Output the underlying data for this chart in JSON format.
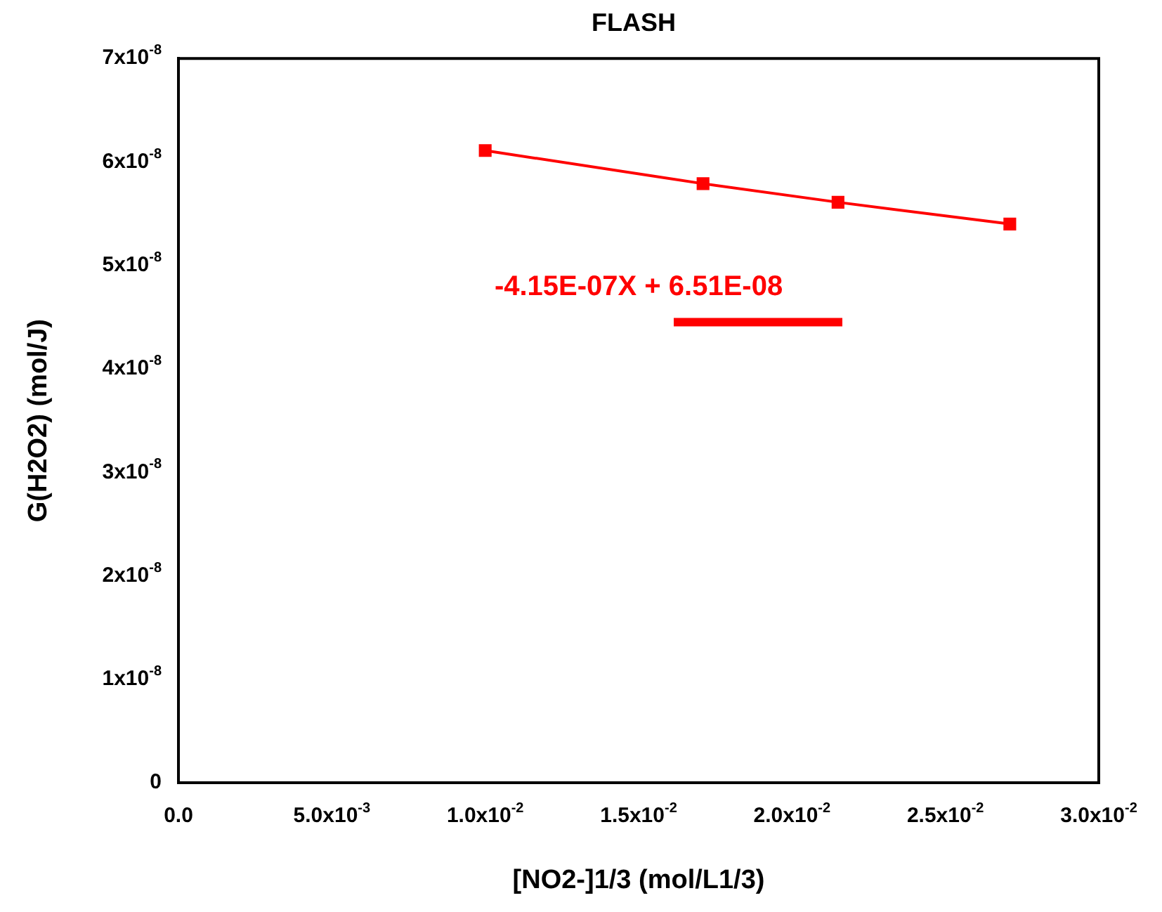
{
  "chart_data": {
    "type": "line",
    "title": "FLASH",
    "xlabel": "[NO2-]1/3 (mol/L1/3)",
    "ylabel": "G(H2O2) (mol/J)",
    "x": [
      0.01,
      0.0171,
      0.0215,
      0.0271
    ],
    "series": [
      {
        "name": "-4.15E-07X + 6.51E-08",
        "color": "#ff0000",
        "values": [
          6.11e-08,
          5.79e-08,
          5.61e-08,
          5.4e-08
        ]
      }
    ],
    "xlim": [
      0,
      0.03
    ],
    "ylim": [
      0,
      7e-08
    ],
    "xticks": [
      {
        "value": 0,
        "label": "0.0"
      },
      {
        "value": 0.005,
        "label": "5.0x10$^{-3}$"
      },
      {
        "value": 0.01,
        "label": "1.0x10$^{-2}$"
      },
      {
        "value": 0.015,
        "label": "1.5x10$^{-2}$"
      },
      {
        "value": 0.02,
        "label": "2.0x10$^{-2}$"
      },
      {
        "value": 0.025,
        "label": "2.5x10$^{-2}$"
      },
      {
        "value": 0.03,
        "label": "3.0x10$^{-2}$"
      }
    ],
    "yticks": [
      0,
      {
        "value": 1e-08,
        "label": "1x10$^{-8}$"
      },
      {
        "value": 2e-08,
        "label": "2x10$^{-8}$"
      },
      {
        "value": 3e-08,
        "label": "3x10$^{-8}$"
      },
      {
        "value": 4e-08,
        "label": "4x10$^{-8}$"
      },
      {
        "value": 5e-08,
        "label": "5x10$^{-8}$"
      },
      {
        "value": 6e-08,
        "label": "6x10$^{-8}$"
      },
      {
        "value": 7e-08,
        "label": "7x10$^{-8}$"
      }
    ],
    "grid": false,
    "legend": "center",
    "marker": "square",
    "line_style": "solid"
  }
}
